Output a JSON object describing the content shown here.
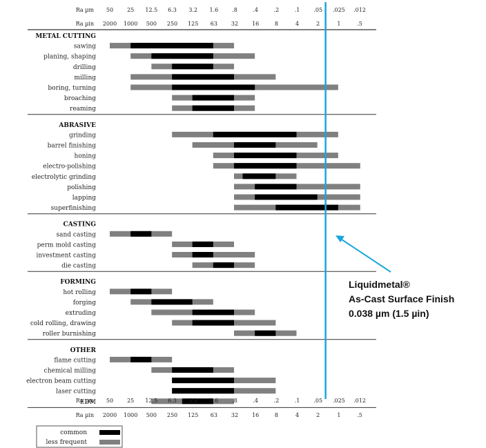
{
  "chart_data": {
    "type": "range-bar",
    "top_axis": {
      "um_label": "Ra µm",
      "uin_label": "Ra µin",
      "um_ticks": [
        "50",
        "25",
        "12.5",
        "6.3",
        "3.2",
        "1.6",
        ".8",
        ".4",
        ".2",
        ".1",
        ".05",
        ".025",
        ".012"
      ],
      "uin_ticks": [
        "2000",
        "1000",
        "500",
        "250",
        "125",
        "63",
        "32",
        "16",
        "8",
        "4",
        "2",
        "1",
        ".5"
      ]
    },
    "bottom_axis": {
      "um_label": "Ra µm",
      "uin_label": "Ra µin",
      "um_ticks": [
        "50",
        "25",
        "12.5",
        "6.3",
        "3.2",
        "1.6",
        ".8",
        ".4",
        ".2",
        ".1",
        ".05",
        ".025",
        ".012"
      ],
      "uin_ticks": [
        "2000",
        "1000",
        "500",
        "250",
        "125",
        "63",
        "32",
        "16",
        "8",
        "4",
        "2",
        "1",
        ".5"
      ]
    },
    "legend": {
      "common": "common",
      "less_frequent": "less frequent",
      "placement": "bottom-left"
    },
    "colors": {
      "common": "#000000",
      "less_frequent": "#808080",
      "highlight": "#1aa6dc"
    },
    "groups": [
      {
        "title": "METAL CUTTING",
        "processes": [
          {
            "name": "sawing",
            "less": [
              50,
              0.8
            ],
            "common": [
              25,
              1.6
            ]
          },
          {
            "name": "planing, shaping",
            "less": [
              25,
              0.4
            ],
            "common": [
              12.5,
              1.6
            ]
          },
          {
            "name": "drilling",
            "less": [
              12.5,
              0.8
            ],
            "common": [
              6.3,
              1.6
            ]
          },
          {
            "name": "milling",
            "less": [
              25,
              0.2
            ],
            "common": [
              6.3,
              0.8
            ]
          },
          {
            "name": "boring, turning",
            "less": [
              25,
              0.025
            ],
            "common": [
              6.3,
              0.4
            ]
          },
          {
            "name": "broaching",
            "less": [
              6.3,
              0.4
            ],
            "common": [
              3.2,
              0.8
            ]
          },
          {
            "name": "reaming",
            "less": [
              6.3,
              0.4
            ],
            "common": [
              3.2,
              0.8
            ]
          }
        ]
      },
      {
        "title": "ABRASIVE",
        "processes": [
          {
            "name": "grinding",
            "less": [
              6.3,
              0.025
            ],
            "common": [
              1.6,
              0.1
            ]
          },
          {
            "name": "barrel finishing",
            "less": [
              3.2,
              0.05
            ],
            "common": [
              0.8,
              0.2
            ]
          },
          {
            "name": "honing",
            "less": [
              1.6,
              0.025
            ],
            "common": [
              0.8,
              0.1
            ]
          },
          {
            "name": "electro-polishing",
            "less": [
              1.6,
              0.012
            ],
            "common": [
              0.8,
              0.1
            ]
          },
          {
            "name": "electrolytic grinding",
            "less": [
              0.8,
              0.1
            ],
            "common": [
              0.6,
              0.2
            ]
          },
          {
            "name": "polishing",
            "less": [
              0.8,
              0.012
            ],
            "common": [
              0.4,
              0.1
            ]
          },
          {
            "name": "lapping",
            "less": [
              0.8,
              0.012
            ],
            "common": [
              0.4,
              0.05
            ]
          },
          {
            "name": "superfinishing",
            "less": [
              0.8,
              0.012
            ],
            "common": [
              0.2,
              0.025
            ]
          }
        ]
      },
      {
        "title": "CASTING",
        "processes": [
          {
            "name": "sand casting",
            "less": [
              50,
              6.3
            ],
            "common": [
              25,
              12.5
            ]
          },
          {
            "name": "perm mold casting",
            "less": [
              6.3,
              0.8
            ],
            "common": [
              3.2,
              1.6
            ]
          },
          {
            "name": "investment casting",
            "less": [
              6.3,
              0.4
            ],
            "common": [
              3.2,
              1.6
            ]
          },
          {
            "name": "die casting",
            "less": [
              3.2,
              0.4
            ],
            "common": [
              1.6,
              0.8
            ]
          }
        ]
      },
      {
        "title": "FORMING",
        "processes": [
          {
            "name": "hot rolling",
            "less": [
              50,
              6.3
            ],
            "common": [
              25,
              12.5
            ]
          },
          {
            "name": "forging",
            "less": [
              25,
              1.6
            ],
            "common": [
              12.5,
              3.2
            ]
          },
          {
            "name": "extruding",
            "less": [
              12.5,
              0.4
            ],
            "common": [
              3.2,
              0.8
            ]
          },
          {
            "name": "cold rolling, drawing",
            "less": [
              6.3,
              0.2
            ],
            "common": [
              3.2,
              0.8
            ]
          },
          {
            "name": "roller burnishing",
            "less": [
              0.8,
              0.1
            ],
            "common": [
              0.4,
              0.2
            ]
          }
        ]
      },
      {
        "title": "OTHER",
        "processes": [
          {
            "name": "flame cutting",
            "less": [
              50,
              6.3
            ],
            "common": [
              25,
              12.5
            ]
          },
          {
            "name": "chemical milling",
            "less": [
              12.5,
              0.8
            ],
            "common": [
              6.3,
              1.6
            ]
          },
          {
            "name": "electron beam cutting",
            "less": [
              6.3,
              0.2
            ],
            "common": [
              6.3,
              0.8
            ]
          },
          {
            "name": "laser cutting",
            "less": [
              6.3,
              0.2
            ],
            "common": [
              6.3,
              0.8
            ]
          },
          {
            "name": "EDM",
            "less": [
              12.5,
              0.8
            ],
            "common": [
              4.5,
              1.6
            ]
          }
        ]
      }
    ],
    "highlight": {
      "value_um": 0.038,
      "lines": [
        "Liquidmetal®",
        "As-Cast Surface Finish",
        "0.038 µm (1.5 µin)"
      ]
    }
  }
}
